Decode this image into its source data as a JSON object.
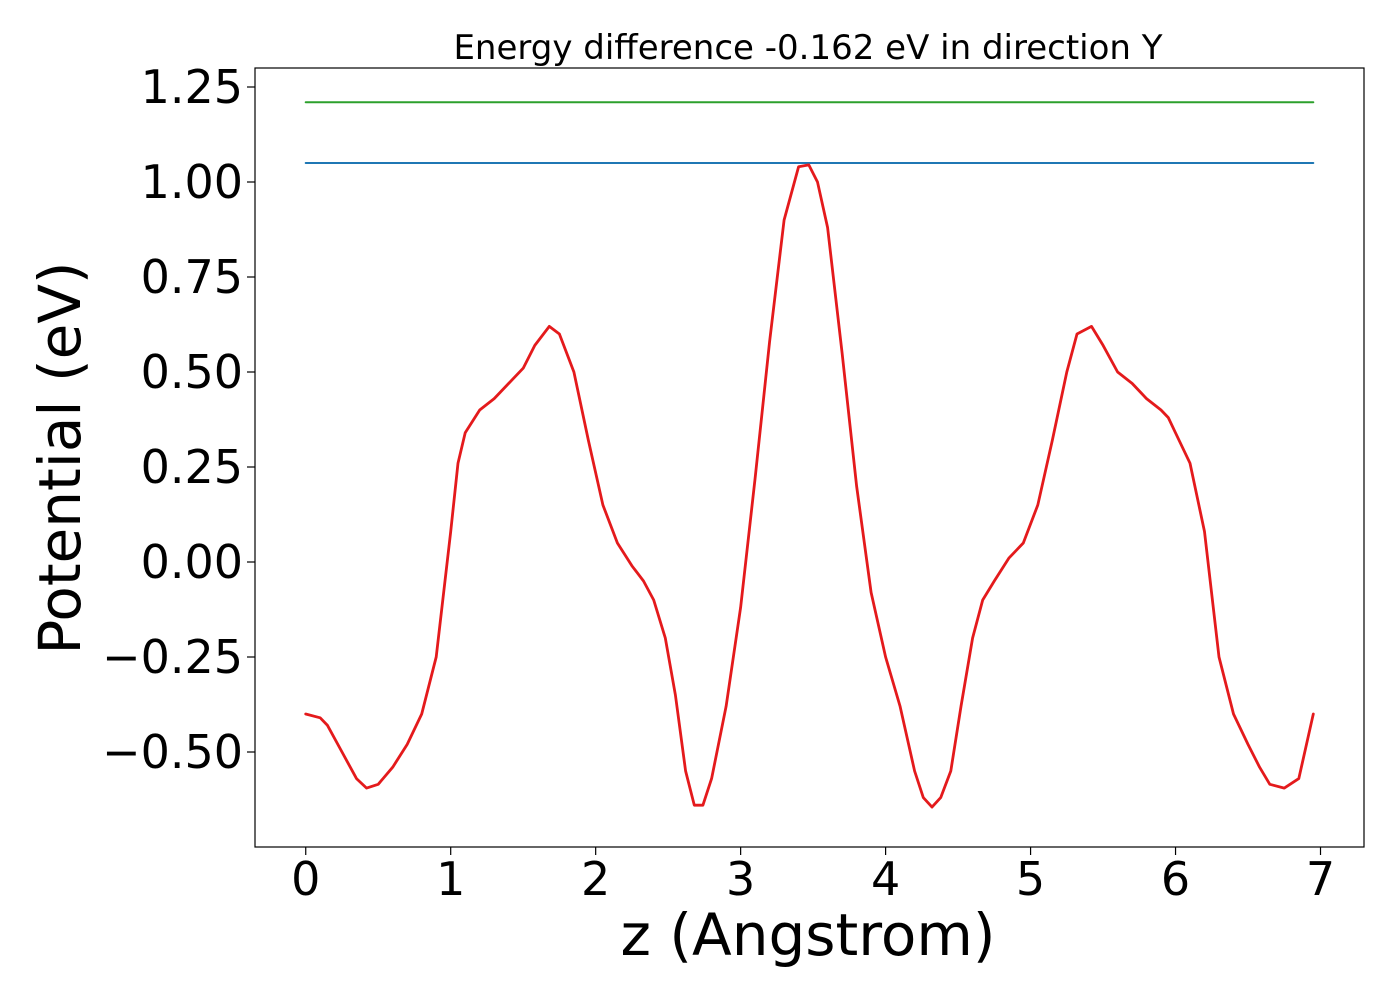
{
  "chart_data": {
    "type": "line",
    "title": "Energy difference -0.162 eV in direction Y",
    "xlabel": "z (Angstrom)",
    "ylabel": "Potential (eV)",
    "xlim": [
      -0.35,
      7.3
    ],
    "ylim": [
      -0.75,
      1.3
    ],
    "x_ticks": [
      0,
      1,
      2,
      3,
      4,
      5,
      6,
      7
    ],
    "x_tick_labels": [
      "0",
      "1",
      "2",
      "3",
      "4",
      "5",
      "6",
      "7"
    ],
    "y_ticks": [
      -0.5,
      -0.25,
      0.0,
      0.25,
      0.5,
      0.75,
      1.0,
      1.25
    ],
    "y_tick_labels": [
      "−0.50",
      "−0.25",
      "0.00",
      "0.25",
      "0.50",
      "0.75",
      "1.00",
      "1.25"
    ],
    "grid": false,
    "series": [
      {
        "color": "#2ca02c",
        "kind": "hline",
        "x": [
          0.0,
          6.95
        ],
        "y": [
          1.21,
          1.21
        ]
      },
      {
        "color": "#1f77b4",
        "kind": "hline",
        "x": [
          0.0,
          6.95
        ],
        "y": [
          1.05,
          1.05
        ]
      },
      {
        "color": "#e41a1c",
        "kind": "curve",
        "x": [
          0.0,
          0.1,
          0.15,
          0.25,
          0.35,
          0.42,
          0.5,
          0.6,
          0.7,
          0.8,
          0.9,
          1.0,
          1.05,
          1.1,
          1.2,
          1.3,
          1.4,
          1.5,
          1.58,
          1.68,
          1.75,
          1.85,
          1.95,
          2.05,
          2.15,
          2.25,
          2.33,
          2.4,
          2.48,
          2.55,
          2.62,
          2.68,
          2.74,
          2.8,
          2.9,
          3.0,
          3.1,
          3.2,
          3.3,
          3.4,
          3.47,
          3.53,
          3.6,
          3.7,
          3.8,
          3.9,
          4.0,
          4.1,
          4.2,
          4.26,
          4.32,
          4.38,
          4.45,
          4.52,
          4.6,
          4.67,
          4.75,
          4.85,
          4.95,
          5.05,
          5.15,
          5.25,
          5.32,
          5.42,
          5.5,
          5.6,
          5.7,
          5.8,
          5.9,
          5.95,
          6.0,
          6.1,
          6.2,
          6.3,
          6.4,
          6.5,
          6.58,
          6.65,
          6.75,
          6.85,
          6.95
        ],
        "y": [
          -0.4,
          -0.41,
          -0.43,
          -0.5,
          -0.57,
          -0.595,
          -0.585,
          -0.54,
          -0.48,
          -0.4,
          -0.25,
          0.08,
          0.26,
          0.34,
          0.4,
          0.43,
          0.47,
          0.51,
          0.57,
          0.62,
          0.6,
          0.5,
          0.32,
          0.15,
          0.05,
          -0.01,
          -0.05,
          -0.1,
          -0.2,
          -0.35,
          -0.55,
          -0.64,
          -0.64,
          -0.57,
          -0.38,
          -0.12,
          0.22,
          0.58,
          0.9,
          1.04,
          1.045,
          1.0,
          0.88,
          0.55,
          0.2,
          -0.08,
          -0.25,
          -0.38,
          -0.55,
          -0.62,
          -0.645,
          -0.62,
          -0.55,
          -0.38,
          -0.2,
          -0.1,
          -0.05,
          0.01,
          0.05,
          0.15,
          0.32,
          0.5,
          0.6,
          0.62,
          0.57,
          0.5,
          0.47,
          0.43,
          0.4,
          0.38,
          0.34,
          0.26,
          0.08,
          -0.25,
          -0.4,
          -0.48,
          -0.54,
          -0.585,
          -0.595,
          -0.57,
          -0.4
        ]
      }
    ]
  }
}
